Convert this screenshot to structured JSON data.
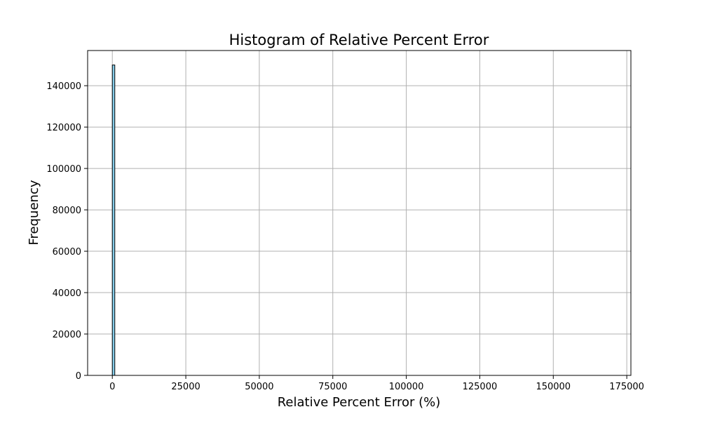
{
  "chart_data": {
    "type": "bar",
    "title": "Histogram of Relative Percent Error",
    "xlabel": "Relative Percent Error (%)",
    "ylabel": "Frequency",
    "xlim": [
      -8400,
      176400
    ],
    "ylim": [
      0,
      157000
    ],
    "xticks": [
      0,
      25000,
      50000,
      75000,
      100000,
      125000,
      150000,
      175000
    ],
    "yticks": [
      0,
      20000,
      40000,
      60000,
      80000,
      100000,
      120000,
      140000
    ],
    "grid": true,
    "bar_color": "#87ceeb",
    "edge_color": "#000000",
    "bins": [
      {
        "x0": 0,
        "x1": 840,
        "count": 150000
      },
      {
        "x0": 840,
        "x1": 168000,
        "count": 0
      }
    ]
  }
}
